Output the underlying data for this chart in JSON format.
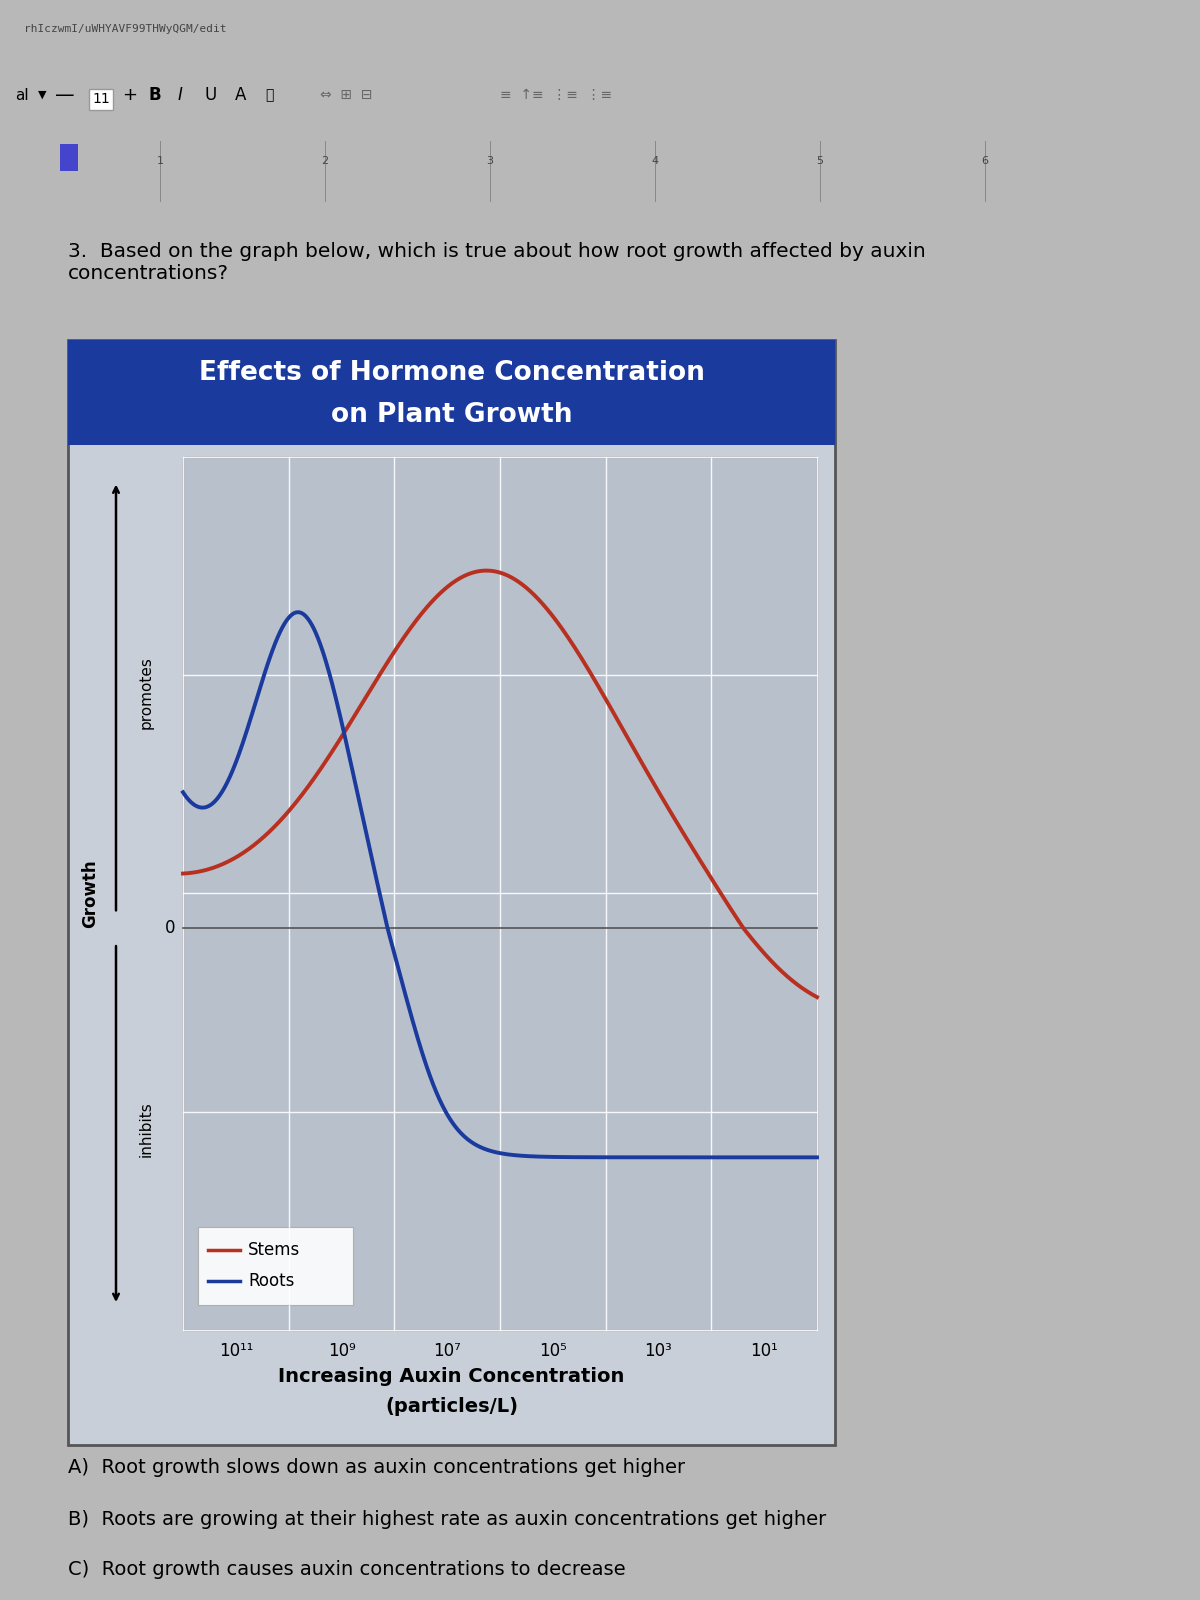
{
  "title_line1": "Effects of Hormone Concentration",
  "title_line2": "on Plant Growth",
  "title_bg_color": "#1a3a9e",
  "title_text_color": "#FFFFFF",
  "chart_bg_color": "#c8cfd8",
  "plot_bg_color": "#b8c0cc",
  "stems_color": "#b83020",
  "roots_color": "#1a3a9e",
  "xlabel_line1": "Increasing Auxin Concentration",
  "xlabel_line2": "(particles/L)",
  "ylabel_promotes": "promotes",
  "ylabel_inhibits": "inhibits",
  "ylabel_growth": "Growth",
  "xtick_labels": [
    "10¹¹",
    "10⁹",
    "10⁷",
    "10⁵",
    "10³",
    "10¹"
  ],
  "question_text": "3.  Based on the graph below, which is true about how root growth affected by auxin\nconcentrations?",
  "answer_a": "A)  Root growth slows down as auxin concentrations get higher",
  "answer_b": "B)  Roots are growing at their highest rate as auxin concentrations get higher",
  "answer_c": "C)  Root growth causes auxin concentrations to decrease",
  "page_bg_color": "#b8b8b8",
  "toolbar_bg": "#e8e8e8",
  "url_bar_bg": "#d0d0d0"
}
